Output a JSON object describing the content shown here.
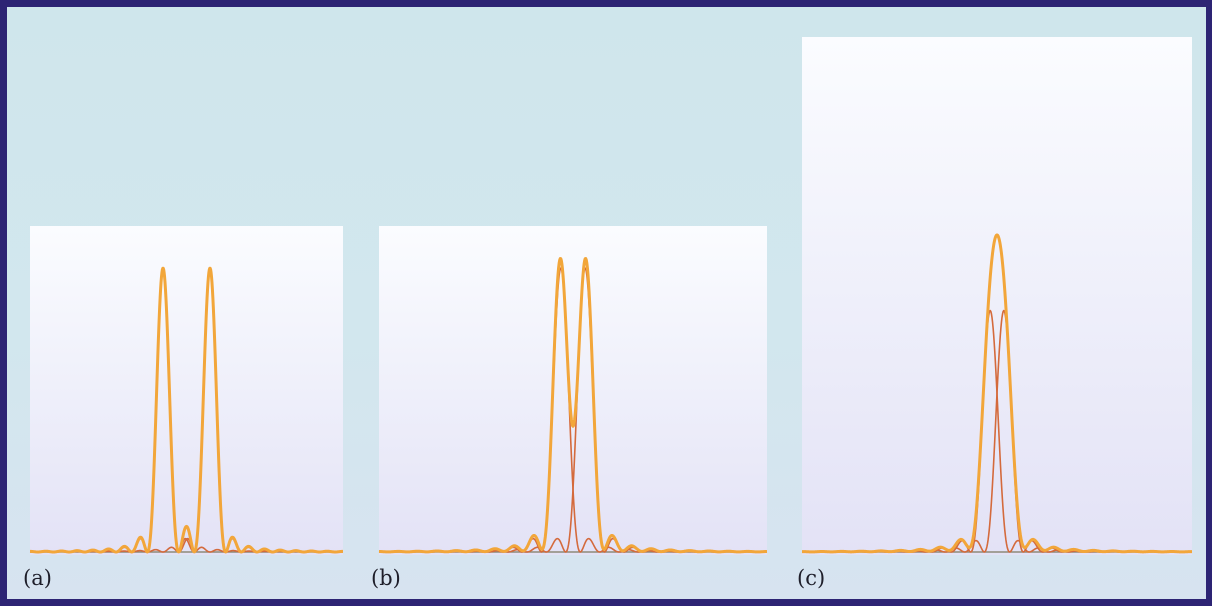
{
  "chart_data": [
    {
      "type": "line",
      "panel_label": "(a)",
      "x": [
        -10,
        10
      ],
      "ylim": [
        0,
        1.12
      ],
      "separation_units": 3.0,
      "peak_width_units": 1.0,
      "series": [
        {
          "values": [
            1.0,
            1.0
          ]
        },
        {
          "values": [
            1.0,
            1.0
          ]
        }
      ],
      "colors": {
        "sum": "#f2a63a",
        "component": "#d46a3c"
      }
    },
    {
      "type": "line",
      "panel_label": "(b)",
      "x": [
        -10,
        10
      ],
      "ylim": [
        0,
        1.12
      ],
      "separation_units": 1.25,
      "peak_width_units": 1.0,
      "series": [
        {
          "values": [
            1.0,
            1.0
          ]
        },
        {
          "values": [
            1.0,
            1.0
          ]
        }
      ],
      "colors": {
        "sum": "#f2a63a",
        "component": "#d46a3c"
      }
    },
    {
      "type": "line",
      "panel_label": "(c)",
      "x": [
        -10,
        10
      ],
      "ylim": [
        0,
        2.1
      ],
      "separation_units": 0.7,
      "peak_width_units": 1.0,
      "series": [
        {
          "values": [
            1.0,
            1.0
          ]
        },
        {
          "values": [
            1.0,
            1.0
          ]
        }
      ],
      "colors": {
        "sum": "#f2a63a",
        "component": "#d46a3c"
      }
    }
  ]
}
